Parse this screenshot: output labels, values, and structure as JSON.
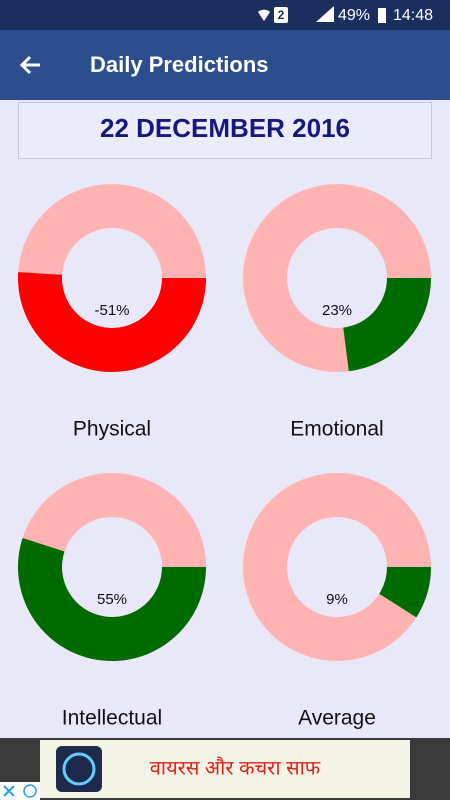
{
  "status_bar": {
    "sim": "2",
    "battery": "49%",
    "time": "14:48"
  },
  "app_bar": {
    "title": "Daily Predictions"
  },
  "date": "22 DECEMBER 2016",
  "ring_color": "#ffb3b3",
  "predictions": [
    {
      "label": "Physical",
      "value": -51,
      "value_label": "-51%",
      "color": "#ff0000"
    },
    {
      "label": "Emotional",
      "value": 23,
      "value_label": "23%",
      "color": "#006b00"
    },
    {
      "label": "Intellectual",
      "value": 55,
      "value_label": "55%",
      "color": "#006b00"
    },
    {
      "label": "Average",
      "value": 9,
      "value_label": "9%",
      "color": "#006b00"
    }
  ],
  "ad": {
    "text": "वायरस और कचरा साफ"
  }
}
